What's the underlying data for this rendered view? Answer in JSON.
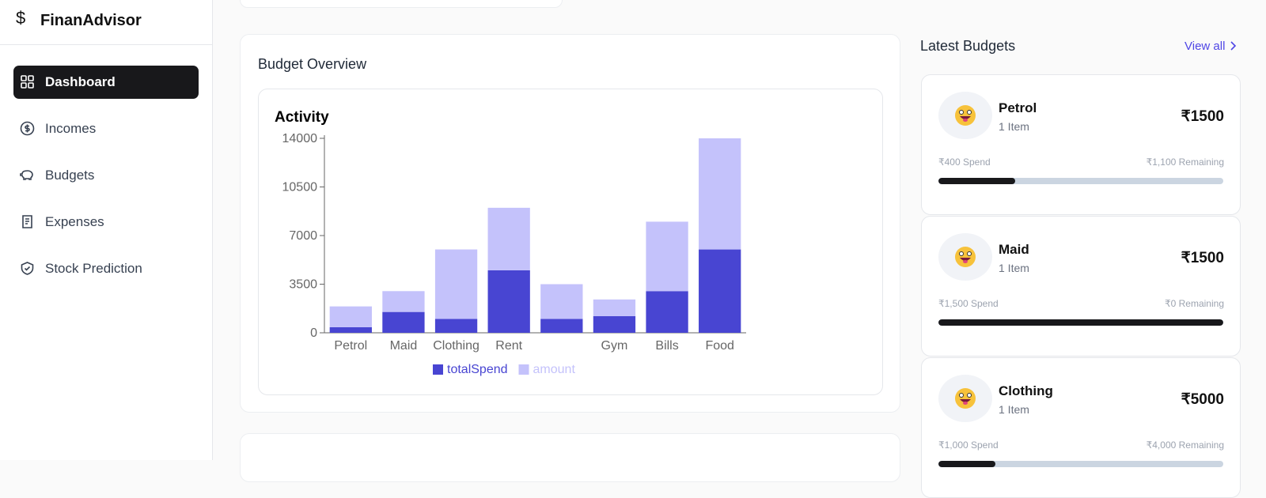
{
  "sidebar": {
    "brand": "FinanAdvisor",
    "nav": [
      {
        "label": "Dashboard",
        "active": true
      },
      {
        "label": "Incomes",
        "active": false
      },
      {
        "label": "Budgets",
        "active": false
      },
      {
        "label": "Expenses",
        "active": false
      },
      {
        "label": "Stock Prediction",
        "active": false
      }
    ]
  },
  "budget_overview": {
    "title": "Budget Overview"
  },
  "chart_data": {
    "type": "stacked-bar",
    "title": "Activity",
    "categories": [
      "Petrol",
      "Maid",
      "Clothing",
      "Rent",
      null,
      "Gym",
      "Bills",
      "Food"
    ],
    "series": [
      {
        "name": "totalSpend",
        "color": "#4845d2",
        "values": [
          400,
          1500,
          1000,
          4500,
          1000,
          1200,
          3000,
          6000
        ]
      },
      {
        "name": "amount",
        "color": "#c4c2fb",
        "values": [
          1500,
          1500,
          5000,
          4500,
          2500,
          1200,
          5000,
          8000
        ]
      }
    ],
    "ylim": [
      0,
      14000
    ],
    "yticks": [
      0,
      3500,
      7000,
      10500,
      14000
    ]
  },
  "latest_budgets": {
    "title": "Latest Budgets",
    "view_all": "View all",
    "items": [
      {
        "name": "Petrol",
        "count": "1 Item",
        "amount": "₹1500",
        "spend": "₹400 Spend",
        "remaining": "₹1,100 Remaining",
        "progress": 27
      },
      {
        "name": "Maid",
        "count": "1 Item",
        "amount": "₹1500",
        "spend": "₹1,500 Spend",
        "remaining": "₹0 Remaining",
        "progress": 100
      },
      {
        "name": "Clothing",
        "count": "1 Item",
        "amount": "₹5000",
        "spend": "₹1,000 Spend",
        "remaining": "₹4,000 Remaining",
        "progress": 20
      }
    ]
  }
}
